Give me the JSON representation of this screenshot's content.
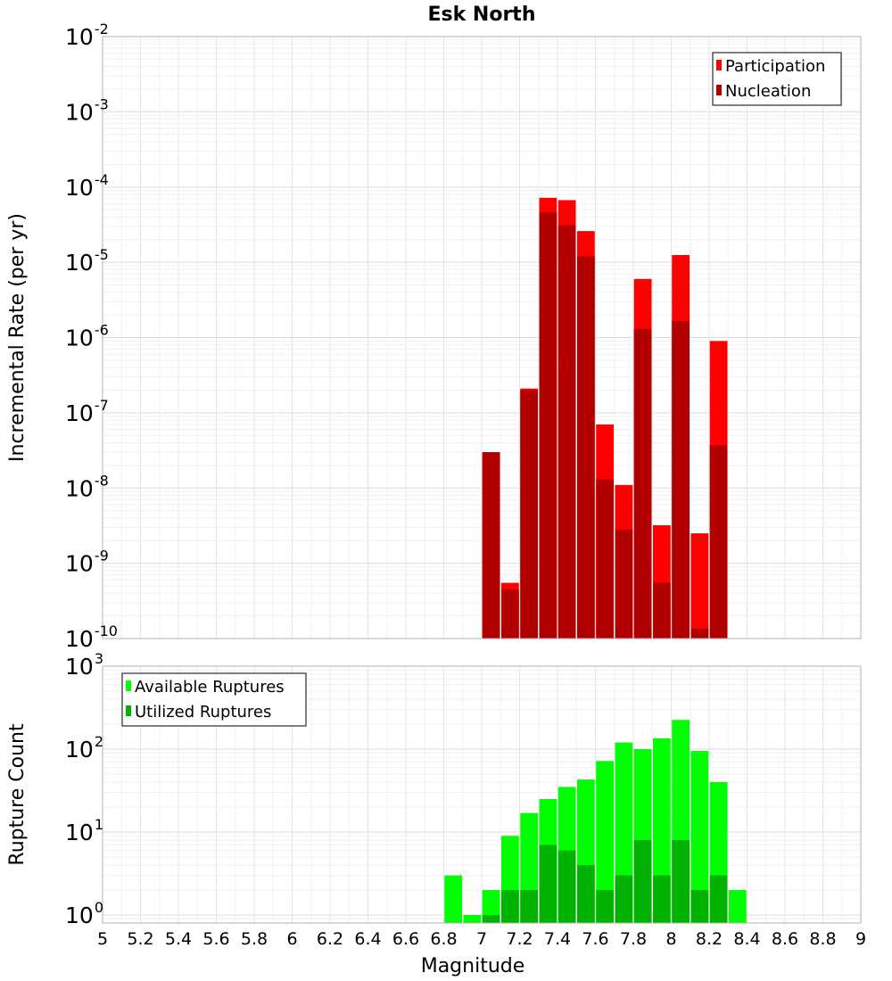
{
  "chart_data": [
    {
      "type": "bar",
      "title": "Esk North",
      "ylabel": "Incremental Rate (per yr)",
      "xlabel": "",
      "x_range": [
        5,
        9
      ],
      "bin_width": 0.1,
      "y_scale": "log",
      "y_range": [
        1e-10,
        0.01
      ],
      "y_tick_exponents": [
        -10,
        -9,
        -8,
        -7,
        -6,
        -5,
        -4,
        -3,
        -2
      ],
      "grid": true,
      "legend_position": "top-right",
      "colors": {
        "Participation": "#ff0000",
        "Nucleation": "#b20000"
      },
      "series": [
        {
          "name": "Participation",
          "x": [
            7.05,
            7.15,
            7.25,
            7.35,
            7.45,
            7.55,
            7.65,
            7.75,
            7.85,
            7.95,
            8.05,
            8.15,
            8.25
          ],
          "values": [
            3e-08,
            5.5e-10,
            2.1e-07,
            7.2e-05,
            6.7e-05,
            2.6e-05,
            7e-08,
            1.1e-08,
            6e-06,
            3.2e-09,
            1.25e-05,
            2.5e-09,
            9e-07
          ]
        },
        {
          "name": "Nucleation",
          "x": [
            7.05,
            7.15,
            7.25,
            7.35,
            7.45,
            7.55,
            7.65,
            7.75,
            7.85,
            7.95,
            8.05,
            8.15,
            8.25
          ],
          "values": [
            3e-08,
            4.5e-10,
            2e-07,
            4.6e-05,
            3.1e-05,
            1.2e-05,
            1.3e-08,
            2.8e-09,
            1.3e-06,
            5.5e-10,
            1.65e-06,
            1.35e-10,
            3.7e-08
          ]
        }
      ]
    },
    {
      "type": "bar",
      "title": "",
      "ylabel": "Rupture Count",
      "xlabel": "Magnitude",
      "x_range": [
        5,
        9
      ],
      "bin_width": 0.1,
      "x_ticks": [
        "5",
        "5.2",
        "5.4",
        "5.6",
        "5.8",
        "6",
        "6.2",
        "6.4",
        "6.6",
        "6.8",
        "7",
        "7.2",
        "7.4",
        "7.6",
        "7.8",
        "8",
        "8.2",
        "8.4",
        "8.6",
        "8.8",
        "9"
      ],
      "y_scale": "log",
      "y_range": [
        0.8,
        1000
      ],
      "y_tick_exponents": [
        0,
        1,
        2,
        3
      ],
      "grid": true,
      "legend_position": "top-left",
      "colors": {
        "Available Ruptures": "#00ff00",
        "Utilized Ruptures": "#00b300"
      },
      "series": [
        {
          "name": "Available Ruptures",
          "x": [
            6.85,
            6.95,
            7.05,
            7.15,
            7.25,
            7.35,
            7.45,
            7.55,
            7.65,
            7.75,
            7.85,
            7.95,
            8.05,
            8.15,
            8.25,
            8.35
          ],
          "values": [
            3,
            1,
            2,
            9,
            17,
            25,
            35,
            43,
            72,
            120,
            100,
            135,
            225,
            95,
            40,
            2
          ]
        },
        {
          "name": "Utilized Ruptures",
          "x": [
            7.05,
            7.15,
            7.25,
            7.35,
            7.45,
            7.55,
            7.65,
            7.75,
            7.85,
            7.95,
            8.05,
            8.15,
            8.25
          ],
          "values": [
            1,
            2,
            2,
            7,
            6,
            4,
            2,
            3,
            8,
            3,
            8,
            2,
            3
          ]
        }
      ]
    }
  ]
}
